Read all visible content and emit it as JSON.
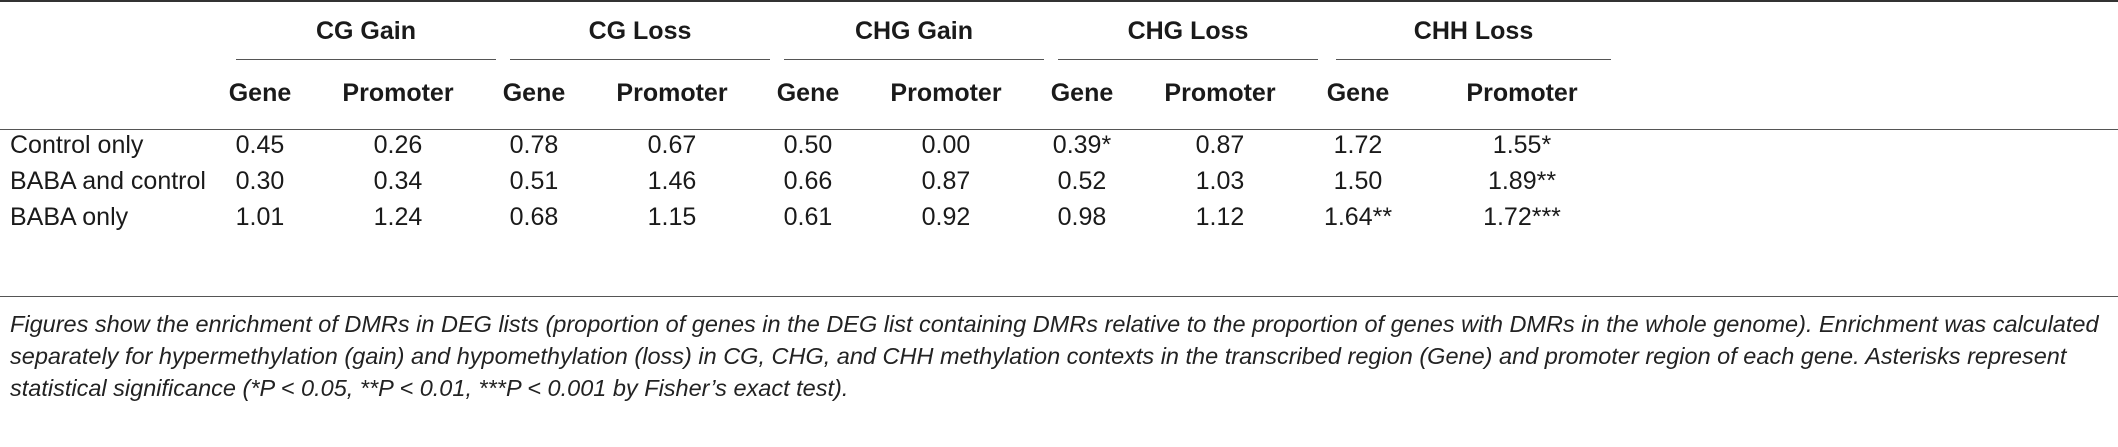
{
  "table": {
    "groups": [
      "CG Gain",
      "CG Loss",
      "CHG Gain",
      "CHG Loss",
      "CHH Loss"
    ],
    "subheaders": [
      "Gene",
      "Promoter"
    ],
    "rows": [
      {
        "label": "Control only",
        "cells": [
          "0.45",
          "0.26",
          "0.78",
          "0.67",
          "0.50",
          "0.00",
          "0.39*",
          "0.87",
          "1.72",
          "1.55*"
        ]
      },
      {
        "label": "BABA and control",
        "cells": [
          "0.30",
          "0.34",
          "0.51",
          "1.46",
          "0.66",
          "0.87",
          "0.52",
          "1.03",
          "1.50",
          "1.89**"
        ]
      },
      {
        "label": "BABA only",
        "cells": [
          "1.01",
          "1.24",
          "0.68",
          "1.15",
          "0.61",
          "0.92",
          "0.98",
          "1.12",
          "1.64**",
          "1.72***"
        ]
      }
    ]
  },
  "footnote": "Figures show the enrichment of DMRs in DEG lists (proportion of genes in the DEG list containing DMRs relative to the proportion of genes with DMRs in the whole genome). Enrichment was calculated separately for hypermethylation (gain) and hypomethylation (loss) in CG, CHG, and CHH methylation contexts in the transcribed region (Gene) and promoter region of each gene. Asterisks represent statistical significance (*P < 0.05, **P < 0.01, ***P < 0.001 by Fisher’s exact test)."
}
